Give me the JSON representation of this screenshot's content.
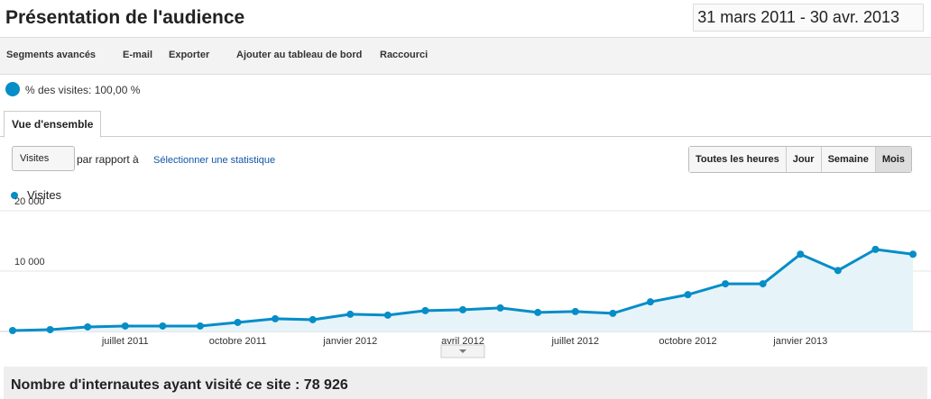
{
  "header": {
    "title": "Présentation de l'audience",
    "date_range": "31 mars 2011 - 30 avr. 2013"
  },
  "toolbar": {
    "items": [
      "Segments avancés",
      "E-mail",
      "Exporter",
      "Ajouter au tableau de bord",
      "Raccourci"
    ]
  },
  "segment": {
    "label": "% des visites: 100,00 %"
  },
  "tab": {
    "label": "Vue d'ensemble"
  },
  "controls": {
    "metric": "Visites",
    "compare": "par rapport à",
    "link": "Sélectionner une statistique",
    "granularity": [
      "Toutes les heures",
      "Jour",
      "Semaine",
      "Mois"
    ]
  },
  "chart_data": {
    "type": "line",
    "categories": [
      null,
      null,
      null,
      "juillet 2011",
      null,
      null,
      "octobre 2011",
      null,
      null,
      "janvier 2012",
      null,
      null,
      "avril 2012",
      null,
      null,
      "juillet 2012",
      null,
      null,
      "octobre 2012",
      null,
      null,
      "janvier 2013",
      null,
      null,
      null
    ],
    "series": [
      {
        "name": "Visites",
        "color": "#058dc7",
        "values": [
          150,
          300,
          750,
          900,
          900,
          900,
          1500,
          2100,
          1950,
          2850,
          2700,
          3450,
          3600,
          3900,
          3150,
          3300,
          3000,
          4900,
          6100,
          7900,
          7900,
          12800,
          10100,
          13600,
          12800
        ]
      }
    ],
    "ylim": [
      0,
      20000
    ],
    "yticks": [
      {
        "value": 10000,
        "label": "10 000"
      },
      {
        "value": 20000,
        "label": "20 000"
      }
    ],
    "grid": true
  },
  "footer": {
    "summary": "Nombre d'internautes ayant visité ce site : 78 926"
  }
}
